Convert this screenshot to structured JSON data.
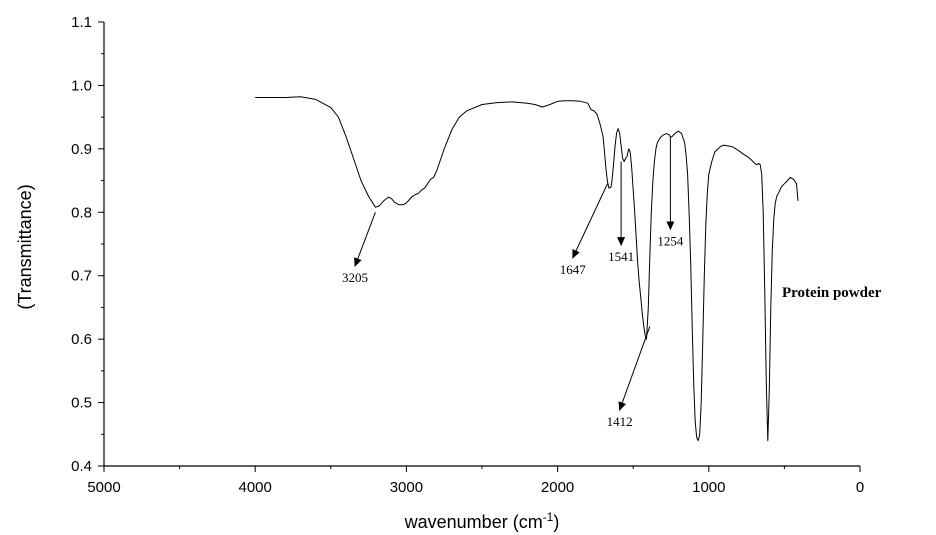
{
  "chart_data": {
    "type": "line",
    "xlabel": "wavenumber (cm",
    "xlabel_sup": "-1",
    "xlabel_end": ")",
    "ylabel": "(Transmittance)",
    "xlim": [
      5000,
      0
    ],
    "ylim": [
      0.4,
      1.1
    ],
    "x_ticks": [
      "5000",
      "4000",
      "3000",
      "2000",
      "1000",
      "0"
    ],
    "y_ticks": [
      "0.4",
      "0.5",
      "0.6",
      "0.7",
      "0.8",
      "0.9",
      "1.0",
      "1.1"
    ],
    "grid": false,
    "series": [
      {
        "name": "Protein powder",
        "x": [
          4000,
          3800,
          3700,
          3600,
          3500,
          3450,
          3400,
          3350,
          3300,
          3250,
          3205,
          3180,
          3150,
          3120,
          3100,
          3080,
          3050,
          3020,
          3000,
          2980,
          2960,
          2940,
          2920,
          2900,
          2880,
          2860,
          2840,
          2820,
          2800,
          2750,
          2700,
          2650,
          2600,
          2500,
          2400,
          2300,
          2200,
          2150,
          2100,
          2050,
          2000,
          1950,
          1900,
          1850,
          1800,
          1780,
          1760,
          1740,
          1720,
          1700,
          1690,
          1680,
          1670,
          1660,
          1647,
          1640,
          1630,
          1620,
          1610,
          1600,
          1590,
          1580,
          1570,
          1560,
          1550,
          1541,
          1530,
          1520,
          1510,
          1500,
          1490,
          1480,
          1470,
          1460,
          1450,
          1440,
          1430,
          1420,
          1412,
          1400,
          1390,
          1380,
          1370,
          1360,
          1350,
          1340,
          1320,
          1300,
          1280,
          1260,
          1254,
          1240,
          1220,
          1200,
          1180,
          1160,
          1150,
          1140,
          1130,
          1120,
          1110,
          1100,
          1090,
          1080,
          1070,
          1060,
          1050,
          1040,
          1030,
          1020,
          1010,
          1000,
          980,
          960,
          940,
          920,
          900,
          880,
          860,
          840,
          820,
          800,
          780,
          760,
          740,
          720,
          700,
          690,
          680,
          670,
          660,
          650,
          640,
          630,
          620,
          610,
          600,
          590,
          580,
          570,
          560,
          550,
          540,
          520,
          500,
          480,
          460,
          440,
          420,
          410
        ],
        "values": [
          0.981,
          0.981,
          0.982,
          0.978,
          0.965,
          0.95,
          0.92,
          0.885,
          0.85,
          0.825,
          0.808,
          0.81,
          0.818,
          0.824,
          0.822,
          0.816,
          0.812,
          0.812,
          0.815,
          0.82,
          0.825,
          0.828,
          0.83,
          0.835,
          0.838,
          0.845,
          0.852,
          0.855,
          0.865,
          0.9,
          0.93,
          0.95,
          0.96,
          0.97,
          0.973,
          0.974,
          0.972,
          0.97,
          0.966,
          0.97,
          0.975,
          0.976,
          0.976,
          0.975,
          0.972,
          0.962,
          0.96,
          0.955,
          0.94,
          0.92,
          0.895,
          0.868,
          0.848,
          0.838,
          0.84,
          0.85,
          0.875,
          0.905,
          0.925,
          0.932,
          0.925,
          0.905,
          0.885,
          0.88,
          0.885,
          0.888,
          0.9,
          0.895,
          0.87,
          0.835,
          0.8,
          0.76,
          0.72,
          0.69,
          0.665,
          0.64,
          0.62,
          0.605,
          0.6,
          0.65,
          0.73,
          0.8,
          0.85,
          0.88,
          0.9,
          0.91,
          0.918,
          0.922,
          0.924,
          0.922,
          0.918,
          0.92,
          0.925,
          0.928,
          0.924,
          0.91,
          0.89,
          0.86,
          0.8,
          0.72,
          0.62,
          0.53,
          0.47,
          0.445,
          0.44,
          0.45,
          0.5,
          0.6,
          0.7,
          0.78,
          0.83,
          0.86,
          0.88,
          0.895,
          0.9,
          0.904,
          0.906,
          0.905,
          0.904,
          0.903,
          0.9,
          0.897,
          0.893,
          0.89,
          0.887,
          0.883,
          0.878,
          0.876,
          0.875,
          0.877,
          0.875,
          0.86,
          0.8,
          0.68,
          0.53,
          0.44,
          0.52,
          0.65,
          0.74,
          0.79,
          0.815,
          0.825,
          0.83,
          0.84,
          0.845,
          0.85,
          0.855,
          0.852,
          0.845,
          0.818
        ]
      }
    ],
    "annotations": [
      {
        "text": "3205",
        "peak_x": 3205,
        "peak_y": 0.8,
        "label_x": 3340,
        "label_y": 0.712
      },
      {
        "text": "1647",
        "peak_x": 1670,
        "peak_y": 0.845,
        "label_x": 1900,
        "label_y": 0.725
      },
      {
        "text": "1541",
        "peak_x": 1580,
        "peak_y": 0.88,
        "label_x": 1580,
        "label_y": 0.745
      },
      {
        "text": "1254",
        "peak_x": 1254,
        "peak_y": 0.918,
        "label_x": 1254,
        "label_y": 0.77
      },
      {
        "text": "1412",
        "peak_x": 1390,
        "peak_y": 0.62,
        "label_x": 1590,
        "label_y": 0.485
      }
    ],
    "sample_label": "Protein powder"
  }
}
